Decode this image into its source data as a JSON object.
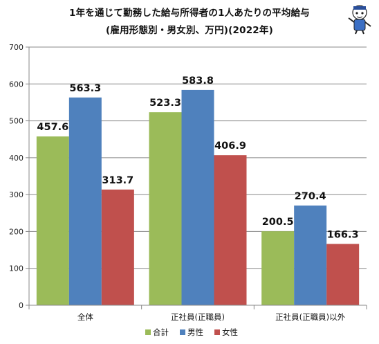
{
  "chart_data": {
    "type": "bar",
    "title": "1年を通じて勤務した給与所得者の1人あたりの平均給与",
    "subtitle": "(雇用形態別・男女別、万円)(2022年)",
    "categories": [
      "全体",
      "正社員(正職員)",
      "正社員(正職員)以外"
    ],
    "series": [
      {
        "name": "合計",
        "color": "#9BBB59",
        "values": [
          457.6,
          523.3,
          200.5
        ]
      },
      {
        "name": "男性",
        "color": "#4F81BD",
        "values": [
          563.3,
          583.8,
          270.4
        ]
      },
      {
        "name": "女性",
        "color": "#C0504D",
        "values": [
          313.7,
          406.9,
          166.3
        ]
      }
    ],
    "data_labels": [
      [
        "457.6",
        "563.3",
        "313.7"
      ],
      [
        "523.3",
        "583.8",
        "406.9"
      ],
      [
        "200.5",
        "270.4",
        "166.3"
      ]
    ],
    "ylim": [
      0,
      700
    ],
    "yticks": [
      0,
      100,
      200,
      300,
      400,
      500,
      600,
      700
    ],
    "grid": true,
    "legend": "bottom"
  }
}
